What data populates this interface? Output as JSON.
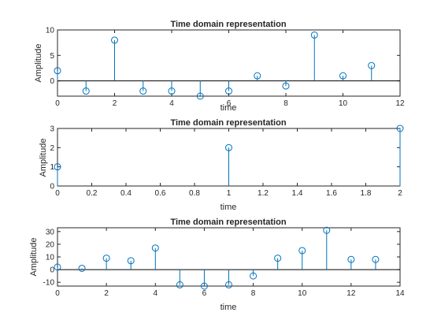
{
  "colors": {
    "stem": "#0072BD",
    "axes": "#262626",
    "baseline": "#000000",
    "background": "#ffffff"
  },
  "chart_data": [
    {
      "type": "stem",
      "title": "Time domain representation",
      "xlabel": "time",
      "ylabel": "Amplitude",
      "xlim": [
        0,
        12
      ],
      "ylim": [
        -3,
        10
      ],
      "xticks": [
        0,
        2,
        4,
        6,
        8,
        10,
        12
      ],
      "yticks": [
        0,
        5,
        10
      ],
      "xtick_labels": [
        "0",
        "2",
        "4",
        "6",
        "8",
        "10",
        "12"
      ],
      "ytick_labels": [
        "0",
        "5",
        "10"
      ],
      "x": [
        0,
        1,
        2,
        3,
        4,
        5,
        6,
        7,
        8,
        9,
        10,
        11
      ],
      "values": [
        2,
        -2,
        8,
        -2,
        -2,
        -3,
        -2,
        1,
        -1,
        9,
        1,
        3
      ],
      "grid": false
    },
    {
      "type": "stem",
      "title": "Time domain representation",
      "xlabel": "time",
      "ylabel": "Amplitude",
      "xlim": [
        0,
        2
      ],
      "ylim": [
        0,
        3
      ],
      "xticks": [
        0,
        0.2,
        0.4,
        0.6,
        0.8,
        1,
        1.2,
        1.4,
        1.6,
        1.8,
        2
      ],
      "yticks": [
        0,
        1,
        2,
        3
      ],
      "xtick_labels": [
        "0",
        "0.2",
        "0.4",
        "0.6",
        "0.8",
        "1",
        "1.2",
        "1.4",
        "1.6",
        "1.8",
        "2"
      ],
      "ytick_labels": [
        "0",
        "1",
        "2",
        "3"
      ],
      "x": [
        0,
        1,
        2
      ],
      "values": [
        1,
        2,
        3
      ],
      "grid": false
    },
    {
      "type": "stem",
      "title": "Time domain representation",
      "xlabel": "time",
      "ylabel": "Amplitude",
      "xlim": [
        0,
        14
      ],
      "ylim": [
        -13,
        33
      ],
      "xticks": [
        0,
        2,
        4,
        6,
        8,
        10,
        12,
        14
      ],
      "yticks": [
        -10,
        0,
        10,
        20,
        30
      ],
      "xtick_labels": [
        "0",
        "2",
        "4",
        "6",
        "8",
        "10",
        "12",
        "14"
      ],
      "ytick_labels": [
        "-10",
        "0",
        "10",
        "20",
        "30"
      ],
      "x": [
        0,
        1,
        2,
        3,
        4,
        5,
        6,
        7,
        8,
        9,
        10,
        11,
        12,
        13
      ],
      "values": [
        2,
        1,
        9,
        7,
        17,
        -12,
        -13,
        -12,
        -5,
        9,
        15,
        31,
        8,
        8
      ],
      "grid": false
    }
  ]
}
